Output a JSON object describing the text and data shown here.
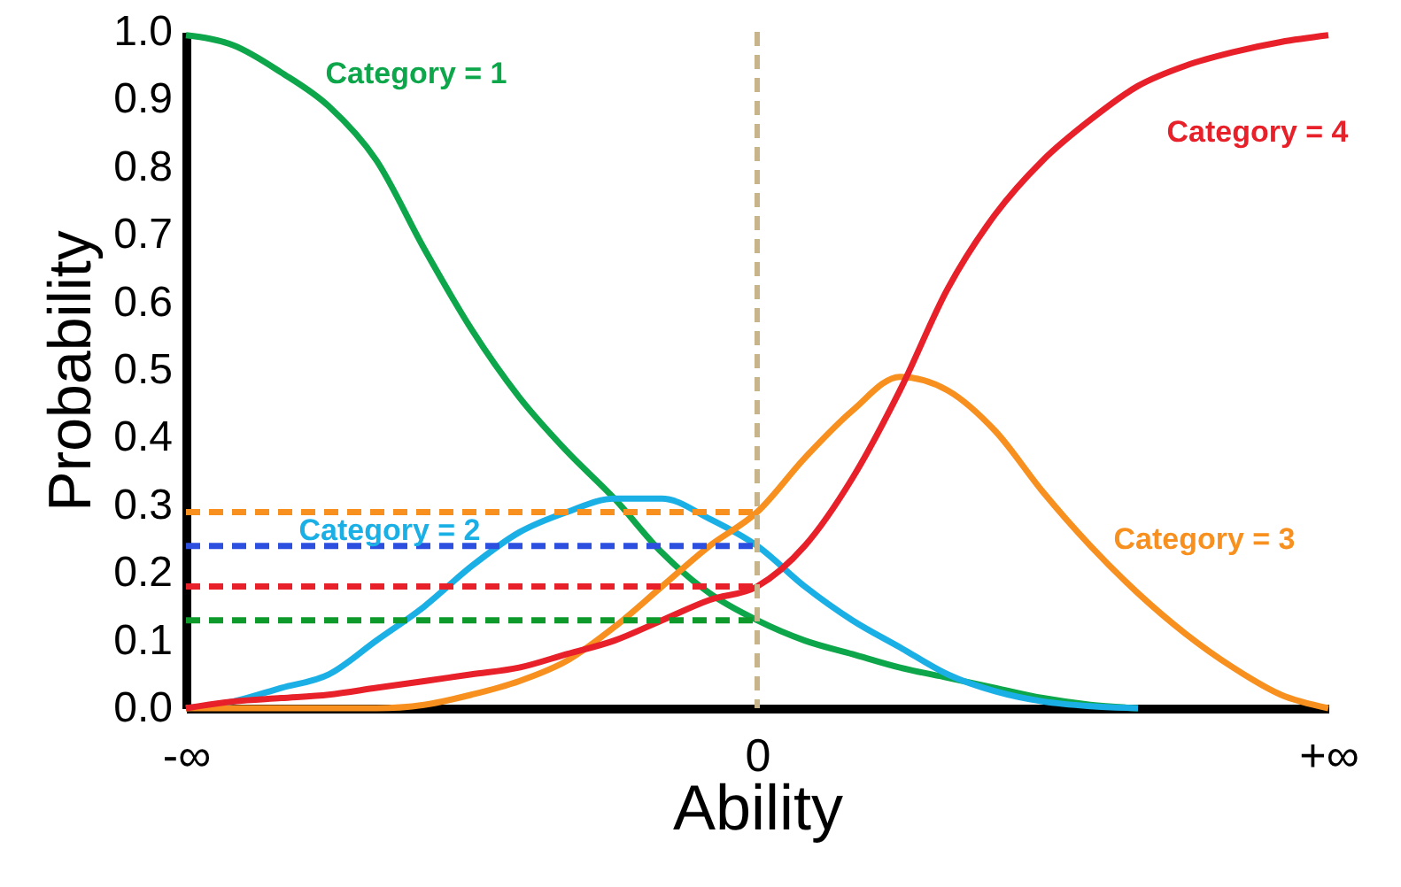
{
  "chart_data": {
    "type": "line",
    "xlabel": "Ability",
    "ylabel": "Probability",
    "categories": [
      "-∞",
      null,
      null,
      null,
      null,
      null,
      null,
      null,
      null,
      null,
      null,
      null,
      "0",
      null,
      null,
      null,
      null,
      null,
      null,
      null,
      null,
      null,
      null,
      null,
      "+∞"
    ],
    "ylim": [
      0,
      1
    ],
    "yticks": [
      {
        "value": 0,
        "label": "0.0"
      },
      {
        "value": 0.1,
        "label": "0.1"
      },
      {
        "value": 0.2,
        "label": "0.2"
      },
      {
        "value": 0.3,
        "label": "0.3"
      },
      {
        "value": 0.4,
        "label": "0.4"
      },
      {
        "value": 0.5,
        "label": "0.5"
      },
      {
        "value": 0.6,
        "label": "0.6"
      },
      {
        "value": 0.7,
        "label": "0.7"
      },
      {
        "value": 0.8,
        "label": "0.8"
      },
      {
        "value": 0.9,
        "label": "0.9"
      },
      {
        "value": 1.0,
        "label": "1.0"
      }
    ],
    "grid": false,
    "marker": "none",
    "line_style": "solid",
    "series": [
      {
        "color": "#0da64a",
        "values": [
          0.995,
          0.98,
          0.94,
          0.89,
          0.81,
          0.68,
          0.56,
          0.46,
          0.38,
          0.31,
          0.23,
          0.17,
          0.13,
          0.1,
          0.08,
          0.06,
          0.045,
          0.03,
          0.015,
          0.005,
          0,
          null,
          null,
          null,
          null
        ]
      },
      {
        "color": "#1ab0e6",
        "values": [
          0,
          0.01,
          0.03,
          0.05,
          0.1,
          0.15,
          0.21,
          0.26,
          0.29,
          0.31,
          0.31,
          0.28,
          0.24,
          0.18,
          0.13,
          0.09,
          0.05,
          0.025,
          0.01,
          0.003,
          0,
          null,
          null,
          null,
          null
        ]
      },
      {
        "color": "#f7901e",
        "values": [
          0,
          0,
          0,
          0,
          0,
          0.005,
          0.02,
          0.04,
          0.07,
          0.12,
          0.18,
          0.24,
          0.29,
          0.37,
          0.44,
          0.49,
          0.47,
          0.41,
          0.32,
          0.24,
          0.17,
          0.11,
          0.06,
          0.02,
          0
        ]
      },
      {
        "color": "#e8202a",
        "values": [
          0,
          0.01,
          0.015,
          0.02,
          0.03,
          0.04,
          0.05,
          0.06,
          0.08,
          0.1,
          0.13,
          0.16,
          0.18,
          0.24,
          0.34,
          0.47,
          0.62,
          0.73,
          0.81,
          0.87,
          0.92,
          0.95,
          0.97,
          0.985,
          0.995
        ]
      },
      {
        "color": "#f7901e",
        "line_style": "dashed",
        "values": [
          0.29,
          0.29,
          0.29,
          0.29,
          0.29,
          0.29,
          0.29,
          0.29,
          0.29,
          0.29,
          0.29,
          0.29,
          0.29,
          null,
          null,
          null,
          null,
          null,
          null,
          null,
          null,
          null,
          null,
          null,
          null
        ]
      },
      {
        "color": "#2d4fe0",
        "line_style": "dashed",
        "values": [
          0.24,
          0.24,
          0.24,
          0.24,
          0.24,
          0.24,
          0.24,
          0.24,
          0.24,
          0.24,
          0.24,
          0.24,
          0.24,
          null,
          null,
          null,
          null,
          null,
          null,
          null,
          null,
          null,
          null,
          null,
          null
        ]
      },
      {
        "color": "#e8202a",
        "line_style": "dashed",
        "values": [
          0.18,
          0.18,
          0.18,
          0.18,
          0.18,
          0.18,
          0.18,
          0.18,
          0.18,
          0.18,
          0.18,
          0.18,
          0.18,
          null,
          null,
          null,
          null,
          null,
          null,
          null,
          null,
          null,
          null,
          null,
          null
        ]
      },
      {
        "color": "#0d9a2a",
        "line_style": "dashed",
        "values": [
          0.13,
          0.13,
          0.13,
          0.13,
          0.13,
          0.13,
          0.13,
          0.13,
          0.13,
          0.13,
          0.13,
          0.13,
          0.13,
          null,
          null,
          null,
          null,
          null,
          null,
          null,
          null,
          null,
          null,
          null,
          null
        ]
      }
    ],
    "ref_lines": [
      {
        "axis": "x",
        "value": "0",
        "color": "#c8b48a",
        "line_style": "dashed"
      }
    ],
    "annotations": [
      "Category = 1",
      "Category = 2",
      "Category = 3",
      "Category = 4"
    ]
  }
}
